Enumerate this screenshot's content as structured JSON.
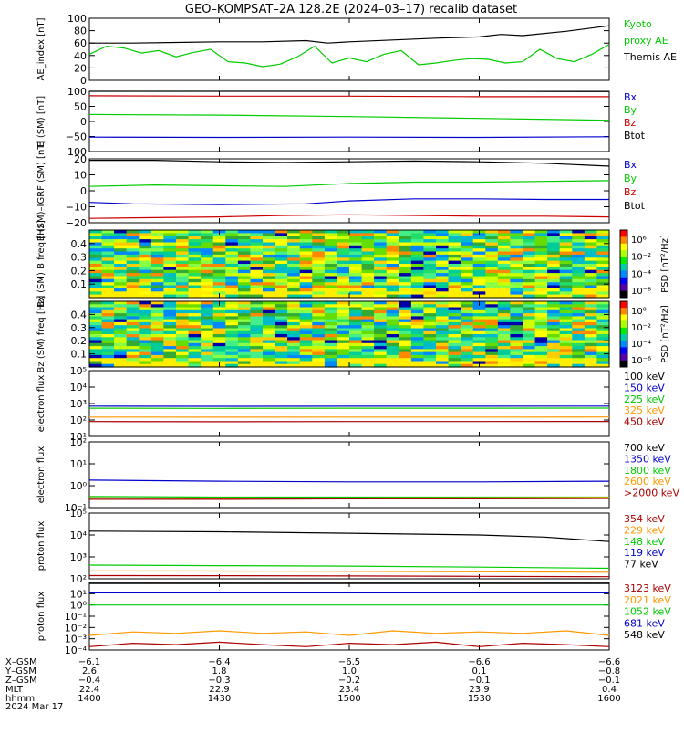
{
  "title": "GEO–KOMPSAT–2A 128.2E (2024–03–17) recalib dataset",
  "colors": {
    "black": "#000000",
    "blue": "#0000cc",
    "green": "#00cc00",
    "red": "#cc0000",
    "orange": "#ff9900",
    "darkred": "#aa0000"
  },
  "time_axis": {
    "tick_labels": [
      "1400",
      "1430",
      "1500",
      "1530",
      "1600"
    ],
    "ephemeris": [
      {
        "label": "X–GSM",
        "values": [
          "−6.1",
          "−6.4",
          "−6.5",
          "−6.6",
          "−6.6"
        ]
      },
      {
        "label": "Y–GSM",
        "values": [
          "2.6",
          "1.8",
          "1.0",
          "0.1",
          "−0.8"
        ]
      },
      {
        "label": "Z–GSM",
        "values": [
          "−0.4",
          "−0.3",
          "−0.2",
          "−0.1",
          "−0.1"
        ]
      },
      {
        "label": "MLT",
        "values": [
          "22.4",
          "22.9",
          "23.4",
          "23.9",
          "0.4"
        ]
      },
      {
        "label": "hhmm",
        "values": [
          "1400",
          "1430",
          "1500",
          "1530",
          "1600"
        ]
      }
    ],
    "date_label": "2024 Mar 17"
  },
  "chart_data": [
    {
      "type": "line",
      "ylabel": "AE_index [nT]",
      "ylim": [
        0,
        100
      ],
      "yticks": [
        "0",
        "20",
        "40",
        "60",
        "80",
        "100"
      ],
      "legend": [
        {
          "name": "Kyoto proxy AE",
          "color": "#00cc00",
          "lines": [
            "Kyoto",
            "proxy AE"
          ]
        },
        {
          "name": "Themis AE",
          "color": "#000000",
          "lines": [
            "Themis AE"
          ]
        }
      ],
      "series": [
        {
          "name": "Themis AE",
          "color": "#000000",
          "x": [
            1400,
            1410,
            1420,
            1430,
            1440,
            1450,
            1455,
            1500,
            1510,
            1520,
            1530,
            1535,
            1540,
            1550,
            1600
          ],
          "y": [
            60,
            60,
            61,
            62,
            62,
            64,
            60,
            62,
            65,
            68,
            70,
            74,
            72,
            79,
            88
          ]
        },
        {
          "name": "Kyoto proxy AE",
          "color": "#00cc00",
          "x": [
            1400,
            1404,
            1408,
            1412,
            1416,
            1420,
            1424,
            1428,
            1432,
            1436,
            1440,
            1444,
            1448,
            1452,
            1456,
            1500,
            1504,
            1508,
            1512,
            1516,
            1520,
            1524,
            1528,
            1532,
            1536,
            1540,
            1544,
            1548,
            1552,
            1556,
            1600
          ],
          "y": [
            42,
            55,
            52,
            44,
            48,
            38,
            45,
            50,
            30,
            28,
            22,
            26,
            38,
            55,
            28,
            36,
            30,
            42,
            48,
            25,
            28,
            32,
            35,
            34,
            28,
            30,
            50,
            35,
            30,
            42,
            58
          ]
        }
      ]
    },
    {
      "type": "line",
      "ylabel": "B (SM) [nT]",
      "ylim": [
        -100,
        100
      ],
      "yticks": [
        "−100",
        "−50",
        "0",
        "50",
        "100"
      ],
      "legend": [
        {
          "name": "Bx",
          "color": "#0000cc",
          "lines": [
            "Bx"
          ]
        },
        {
          "name": "By",
          "color": "#00cc00",
          "lines": [
            "By"
          ]
        },
        {
          "name": "Bz",
          "color": "#cc0000",
          "lines": [
            "Bz"
          ]
        },
        {
          "name": "Btot",
          "color": "#000000",
          "lines": [
            "Btot"
          ]
        }
      ],
      "series": [
        {
          "name": "Btot",
          "color": "#000000",
          "x": [
            1400,
            1430,
            1500,
            1530,
            1600
          ],
          "y": [
            100,
            100,
            100,
            100,
            99
          ]
        },
        {
          "name": "Bz",
          "color": "#cc0000",
          "x": [
            1400,
            1430,
            1500,
            1530,
            1600
          ],
          "y": [
            85,
            84,
            84,
            82,
            82
          ]
        },
        {
          "name": "By",
          "color": "#00cc00",
          "x": [
            1400,
            1430,
            1500,
            1530,
            1600
          ],
          "y": [
            23,
            21,
            16,
            10,
            4
          ]
        },
        {
          "name": "Bx",
          "color": "#0000cc",
          "x": [
            1400,
            1430,
            1500,
            1530,
            1600
          ],
          "y": [
            -52,
            -53,
            -52,
            -53,
            -51
          ]
        }
      ]
    },
    {
      "type": "line",
      "ylabel": "B (SM)–IGRF (SM) [nT]",
      "ylim": [
        -22,
        22
      ],
      "yticks": [
        "−20",
        "−10",
        "0",
        "10",
        "20"
      ],
      "legend": [
        {
          "name": "Bx",
          "color": "#0000cc",
          "lines": [
            "Bx"
          ]
        },
        {
          "name": "By",
          "color": "#00cc00",
          "lines": [
            "By"
          ]
        },
        {
          "name": "Bz",
          "color": "#cc0000",
          "lines": [
            "Bz"
          ]
        },
        {
          "name": "Btot",
          "color": "#000000",
          "lines": [
            "Btot"
          ]
        }
      ],
      "series": [
        {
          "name": "Btot",
          "color": "#000000",
          "x": [
            1400,
            1415,
            1430,
            1445,
            1500,
            1515,
            1530,
            1545,
            1600
          ],
          "y": [
            21,
            21,
            20,
            19.5,
            20,
            20.5,
            20,
            19,
            17
          ]
        },
        {
          "name": "By",
          "color": "#00cc00",
          "x": [
            1400,
            1415,
            1430,
            1445,
            1500,
            1515,
            1530,
            1545,
            1600
          ],
          "y": [
            3,
            4,
            3.5,
            3,
            5,
            6,
            6,
            6.5,
            7
          ]
        },
        {
          "name": "Bx",
          "color": "#0000cc",
          "x": [
            1400,
            1410,
            1430,
            1450,
            1500,
            1515,
            1530,
            1545,
            1600
          ],
          "y": [
            -8,
            -9,
            -9.5,
            -9,
            -7,
            -5.5,
            -5.5,
            -6,
            -6
          ]
        },
        {
          "name": "Bz",
          "color": "#cc0000",
          "x": [
            1400,
            1415,
            1430,
            1445,
            1500,
            1515,
            1530,
            1545,
            1600
          ],
          "y": [
            -19,
            -18.5,
            -18,
            -17,
            -16.5,
            -17,
            -17.5,
            -17.5,
            -18
          ]
        }
      ]
    },
    {
      "type": "heatmap",
      "ylabel": "Bx (SM) B freq [Hz]",
      "ylim": [
        0,
        0.5
      ],
      "yticks": [
        "0.1",
        "0.2",
        "0.3",
        "0.4"
      ],
      "colorbar_label": "PSD [nT²/Hz]",
      "colorbar_ticks": [
        "10⁶",
        "10⁻²",
        "10⁻⁴",
        "10⁻⁸"
      ]
    },
    {
      "type": "heatmap",
      "ylabel": "Bz (SM) freq [Hz]",
      "ylim": [
        0,
        0.5
      ],
      "yticks": [
        "0.1",
        "0.2",
        "0.3",
        "0.4"
      ],
      "colorbar_label": "PSD [nT²/Hz]",
      "colorbar_ticks": [
        "10⁰",
        "10⁻²",
        "10⁻⁴",
        "10⁻⁶"
      ]
    },
    {
      "type": "line",
      "ylabel": "electron flux",
      "ylog": [
        1,
        5
      ],
      "yticks": [
        "10¹",
        "10²",
        "10³",
        "10⁴",
        "10⁵"
      ],
      "legend": [
        {
          "name": "100 keV",
          "color": "#000000",
          "lines": [
            "100 keV"
          ]
        },
        {
          "name": "150 keV",
          "color": "#0000cc",
          "lines": [
            "150 keV"
          ]
        },
        {
          "name": "225 keV",
          "color": "#00cc00",
          "lines": [
            "225 keV"
          ]
        },
        {
          "name": "325 keV",
          "color": "#ff9900",
          "lines": [
            "325 keV"
          ]
        },
        {
          "name": "450 keV",
          "color": "#aa0000",
          "lines": [
            "450 keV"
          ]
        }
      ],
      "series": [
        {
          "name": "150 keV",
          "color": "#0000cc",
          "x": [
            1400,
            1430,
            1500,
            1530,
            1600
          ],
          "y": [
            700,
            680,
            690,
            690,
            700
          ]
        },
        {
          "name": "225 keV",
          "color": "#00cc00",
          "x": [
            1400,
            1430,
            1500,
            1530,
            1600
          ],
          "y": [
            520,
            510,
            520,
            520,
            530
          ]
        },
        {
          "name": "325 keV",
          "color": "#ff9900",
          "x": [
            1400,
            1430,
            1500,
            1530,
            1600
          ],
          "y": [
            150,
            148,
            150,
            150,
            152
          ]
        },
        {
          "name": "450 keV",
          "color": "#aa0000",
          "x": [
            1400,
            1430,
            1500,
            1530,
            1600
          ],
          "y": [
            80,
            78,
            80,
            80,
            82
          ]
        }
      ]
    },
    {
      "type": "line",
      "ylabel": "electron flux",
      "ylog": [
        -1,
        2
      ],
      "yticks": [
        "10⁻¹",
        "10⁰",
        "10¹",
        "10²"
      ],
      "legend": [
        {
          "name": "700 keV",
          "color": "#000000",
          "lines": [
            "700 keV"
          ]
        },
        {
          "name": "1350 keV",
          "color": "#0000cc",
          "lines": [
            "1350 keV"
          ]
        },
        {
          "name": "1800 keV",
          "color": "#00cc00",
          "lines": [
            "1800 keV"
          ]
        },
        {
          "name": "2600 keV",
          "color": "#ff9900",
          "lines": [
            "2600 keV"
          ]
        },
        {
          "name": ">2000 keV",
          "color": "#aa0000",
          "lines": [
            ">2000 keV"
          ]
        }
      ],
      "series": [
        {
          "name": "1350 keV",
          "color": "#0000cc",
          "x": [
            1400,
            1430,
            1500,
            1530,
            1600
          ],
          "y": [
            1.8,
            1.6,
            1.5,
            1.5,
            1.6
          ]
        },
        {
          "name": "1800 keV",
          "color": "#00cc00",
          "x": [
            1400,
            1430,
            1500,
            1530,
            1600
          ],
          "y": [
            0.32,
            0.3,
            0.3,
            0.3,
            0.3
          ]
        },
        {
          "name": "2600 keV",
          "color": "#ff9900",
          "x": [
            1400,
            1430,
            1500,
            1530,
            1600
          ],
          "y": [
            0.28,
            0.26,
            0.27,
            0.28,
            0.29
          ]
        },
        {
          "name": ">2000 keV",
          "color": "#aa0000",
          "x": [
            1400,
            1430,
            1500,
            1530,
            1600
          ],
          "y": [
            0.24,
            0.24,
            0.25,
            0.25,
            0.26
          ]
        }
      ]
    },
    {
      "type": "line",
      "ylabel": "proton flux",
      "ylog": [
        2,
        5
      ],
      "yticks": [
        "10²",
        "10³",
        "10⁴",
        "10⁵"
      ],
      "legend": [
        {
          "name": "354 keV",
          "color": "#aa0000",
          "lines": [
            "354 keV"
          ]
        },
        {
          "name": "229 keV",
          "color": "#ff9900",
          "lines": [
            "229 keV"
          ]
        },
        {
          "name": "148 keV",
          "color": "#00cc00",
          "lines": [
            "148 keV"
          ]
        },
        {
          "name": "119 keV",
          "color": "#0000cc",
          "lines": [
            "119 keV"
          ]
        },
        {
          "name": "77 keV",
          "color": "#000000",
          "lines": [
            "77 keV"
          ]
        }
      ],
      "series": [
        {
          "name": "77 keV",
          "color": "#000000",
          "x": [
            1400,
            1430,
            1500,
            1530,
            1545,
            1600
          ],
          "y": [
            15000,
            14000,
            12000,
            10000,
            8000,
            5000
          ]
        },
        {
          "name": "148 keV",
          "color": "#00cc00",
          "x": [
            1400,
            1430,
            1500,
            1530,
            1600
          ],
          "y": [
            420,
            400,
            380,
            340,
            300
          ]
        },
        {
          "name": "229 keV",
          "color": "#ff9900",
          "x": [
            1400,
            1430,
            1500,
            1530,
            1600
          ],
          "y": [
            230,
            225,
            220,
            210,
            200
          ]
        },
        {
          "name": "354 keV",
          "color": "#aa0000",
          "x": [
            1400,
            1430,
            1500,
            1530,
            1600
          ],
          "y": [
            140,
            138,
            135,
            130,
            125
          ]
        }
      ]
    },
    {
      "type": "line",
      "ylabel": "proton flux",
      "ylog": [
        -4,
        2
      ],
      "yticks": [
        "10⁻⁴",
        "10⁻³",
        "10⁻²",
        "10⁻¹",
        "10⁰",
        "10¹"
      ],
      "legend": [
        {
          "name": "3123 keV",
          "color": "#aa0000",
          "lines": [
            "3123 keV"
          ]
        },
        {
          "name": "2021 keV",
          "color": "#ff9900",
          "lines": [
            "2021 keV"
          ]
        },
        {
          "name": "1052 keV",
          "color": "#00cc00",
          "lines": [
            "1052 keV"
          ]
        },
        {
          "name": "681 keV",
          "color": "#0000cc",
          "lines": [
            "681 keV"
          ]
        },
        {
          "name": "548 keV",
          "color": "#000000",
          "lines": [
            "548 keV"
          ]
        }
      ],
      "series": [
        {
          "name": "548 keV",
          "color": "#000000",
          "x": [
            1400,
            1430,
            1500,
            1530,
            1600
          ],
          "y": [
            80,
            80,
            80,
            80,
            80
          ]
        },
        {
          "name": "681 keV",
          "color": "#0000cc",
          "x": [
            1400,
            1430,
            1500,
            1530,
            1600
          ],
          "y": [
            12,
            12,
            12,
            12,
            12
          ]
        },
        {
          "name": "1052 keV",
          "color": "#00cc00",
          "x": [
            1400,
            1430,
            1500,
            1530,
            1600
          ],
          "y": [
            1.0,
            1.0,
            1.0,
            1.0,
            1.0
          ]
        },
        {
          "name": "2021 keV",
          "color": "#ff9900",
          "x": [
            1400,
            1410,
            1420,
            1430,
            1440,
            1450,
            1500,
            1510,
            1520,
            1530,
            1540,
            1550,
            1600
          ],
          "y": [
            0.002,
            0.004,
            0.003,
            0.005,
            0.003,
            0.004,
            0.002,
            0.005,
            0.003,
            0.004,
            0.003,
            0.005,
            0.002
          ]
        },
        {
          "name": "3123 keV",
          "color": "#aa0000",
          "x": [
            1400,
            1410,
            1420,
            1430,
            1440,
            1450,
            1500,
            1510,
            1520,
            1530,
            1540,
            1550,
            1600
          ],
          "y": [
            0.0002,
            0.0004,
            0.0003,
            0.0005,
            0.0003,
            0.0002,
            0.0004,
            0.0003,
            0.0005,
            0.0002,
            0.0004,
            0.0003,
            0.0002
          ]
        }
      ]
    }
  ]
}
